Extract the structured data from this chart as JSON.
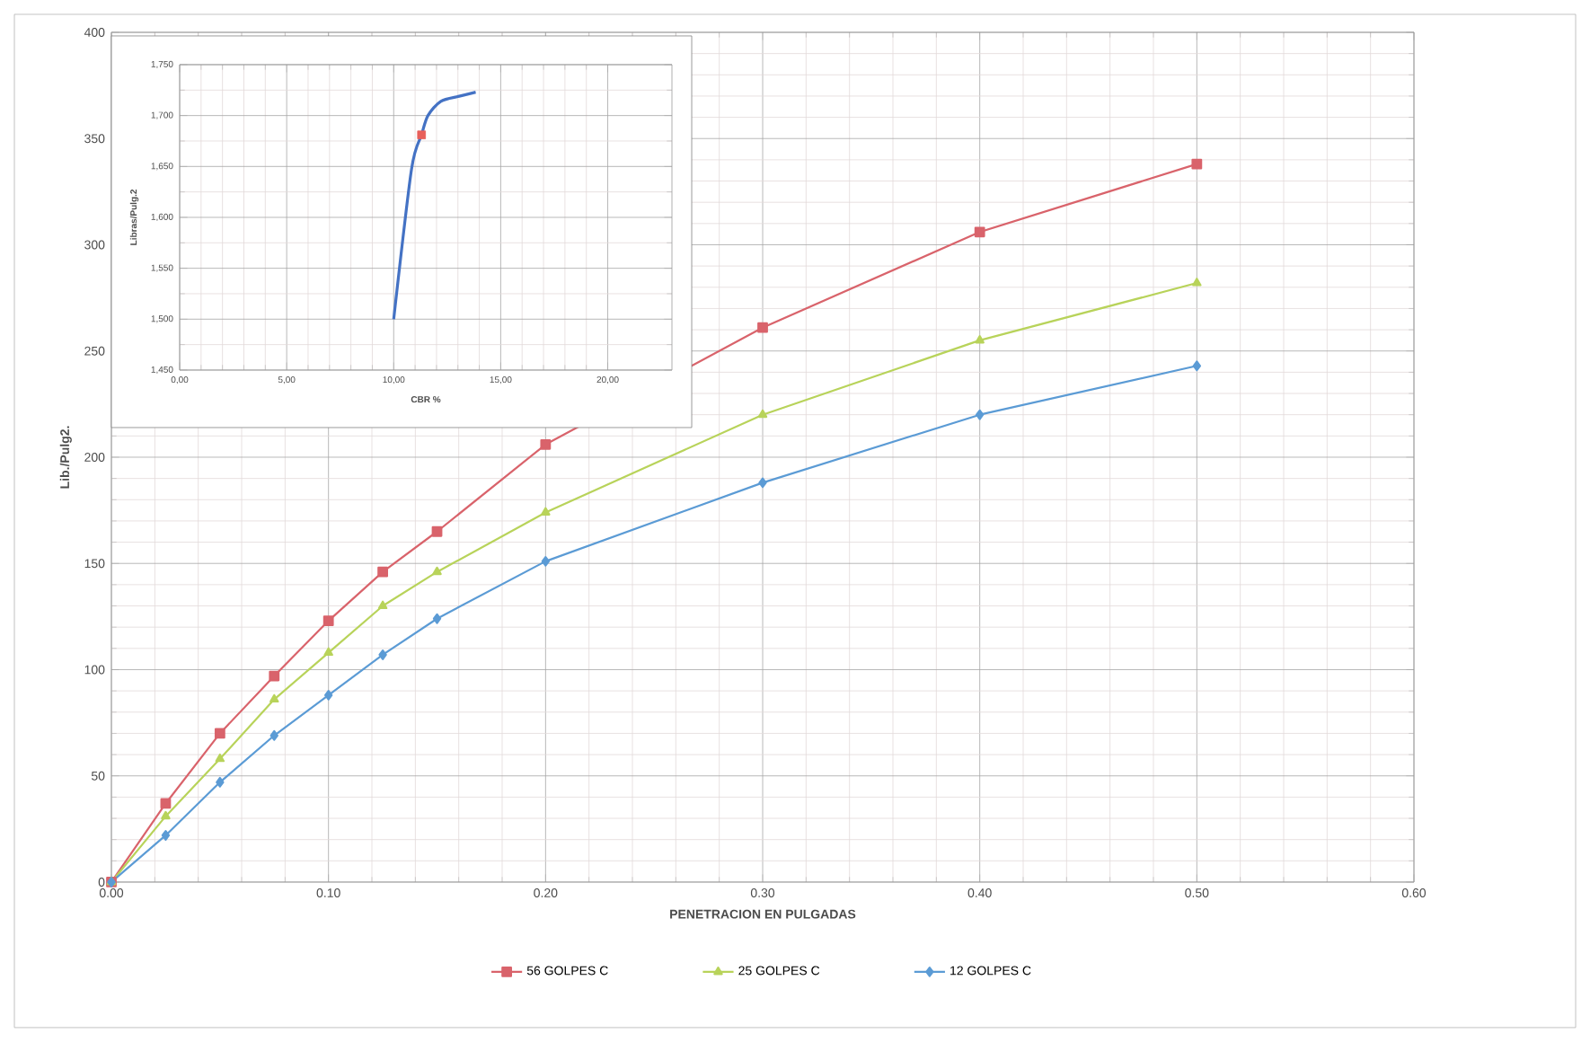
{
  "chart_data": [
    {
      "type": "line",
      "xlabel": "PENETRACION EN PULGADAS",
      "ylabel": "Lib./Pulg2.",
      "x": [
        0,
        0.025,
        0.05,
        0.075,
        0.1,
        0.125,
        0.15,
        0.2,
        0.3,
        0.4,
        0.5
      ],
      "series": [
        {
          "name": "56 GOLPES C",
          "color": "#d9636b",
          "marker": "square",
          "values": [
            0,
            37,
            70,
            97,
            123,
            146,
            165,
            206,
            261,
            306,
            338
          ]
        },
        {
          "name": "25 GOLPES C",
          "color": "#b8d35a",
          "marker": "triangle",
          "values": [
            0,
            31,
            58,
            86,
            108,
            130,
            146,
            174,
            220,
            255,
            282
          ]
        },
        {
          "name": "12 GOLPES C",
          "color": "#5b9bd5",
          "marker": "diamond",
          "values": [
            0,
            22,
            47,
            69,
            88,
            107,
            124,
            151,
            188,
            220,
            243
          ]
        }
      ],
      "xlim": [
        0,
        0.6
      ],
      "ylim": [
        0,
        400
      ],
      "xticks": [
        {
          "value": 0,
          "label": "0.00"
        },
        {
          "value": 0.1,
          "label": "0.10"
        },
        {
          "value": 0.2,
          "label": "0.20"
        },
        {
          "value": 0.3,
          "label": "0.30"
        },
        {
          "value": 0.4,
          "label": "0.40"
        },
        {
          "value": 0.5,
          "label": "0.50"
        },
        {
          "value": 0.6,
          "label": "0.60"
        }
      ],
      "yticks": [
        0,
        50,
        100,
        150,
        200,
        250,
        300,
        350,
        400
      ],
      "grid": true,
      "legend": "bottom",
      "line_style": "solid"
    },
    {
      "type": "line",
      "xlabel": "CBR %",
      "ylabel": "Libras/Pulg.2",
      "series": [
        {
          "color": "#4472c4",
          "marker": "none",
          "x": [
            10.0,
            10.83,
            11.3,
            11.6,
            12.2,
            13.06,
            13.83
          ],
          "values": [
            1500,
            1647,
            1681,
            1700,
            1714,
            1719,
            1723
          ]
        },
        {
          "type": "scatter",
          "color": "#e8605a",
          "marker": "square",
          "x": [
            11.3
          ],
          "values": [
            1681
          ]
        }
      ],
      "xlim": [
        0,
        23
      ],
      "ylim": [
        1450,
        1750
      ],
      "xticks": [
        {
          "value": 0,
          "label": "0,00"
        },
        {
          "value": 5,
          "label": "5,00"
        },
        {
          "value": 10,
          "label": "10,00"
        },
        {
          "value": 15,
          "label": "15,00"
        },
        {
          "value": 20,
          "label": "20,00"
        }
      ],
      "yticks": [
        {
          "value": 1450,
          "label": "1,450"
        },
        {
          "value": 1500,
          "label": "1,500"
        },
        {
          "value": 1550,
          "label": "1,550"
        },
        {
          "value": 1600,
          "label": "1,600"
        },
        {
          "value": 1650,
          "label": "1,650"
        },
        {
          "value": 1700,
          "label": "1,700"
        },
        {
          "value": 1750,
          "label": "1,750"
        }
      ],
      "grid": true,
      "line_style": "solid"
    }
  ]
}
